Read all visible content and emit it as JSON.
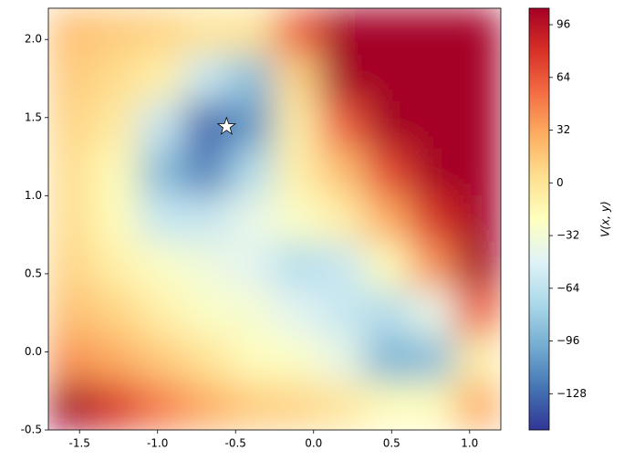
{
  "chart_data": {
    "type": "contour",
    "colorbar_label": "V(x, y)",
    "x": [
      -1.555,
      -1.265,
      -0.975,
      -0.685,
      -0.395,
      -0.105,
      0.185,
      0.475,
      0.765,
      1.055
    ],
    "y": [
      2.05,
      1.75,
      1.45,
      1.15,
      0.85,
      0.55,
      0.25,
      -0.05,
      -0.35
    ],
    "z": [
      [
        20,
        15,
        10,
        0,
        0,
        60,
        110,
        110,
        110,
        110
      ],
      [
        15,
        5,
        -10,
        -60,
        -90,
        10,
        110,
        110,
        110,
        110
      ],
      [
        10,
        -5,
        -60,
        -130,
        -110,
        -10,
        60,
        110,
        110,
        110
      ],
      [
        5,
        -20,
        -90,
        -120,
        -70,
        -10,
        20,
        70,
        110,
        110
      ],
      [
        5,
        -20,
        -60,
        -60,
        -40,
        -25,
        -10,
        30,
        80,
        110
      ],
      [
        10,
        -10,
        -25,
        -35,
        -45,
        -70,
        -60,
        -20,
        40,
        110
      ],
      [
        20,
        10,
        -10,
        -25,
        -30,
        -45,
        -60,
        -70,
        -40,
        60
      ],
      [
        40,
        30,
        15,
        0,
        -20,
        -25,
        -40,
        -95,
        -90,
        -10
      ],
      [
        110,
        80,
        50,
        30,
        15,
        10,
        0,
        -20,
        -20,
        30
      ]
    ],
    "zlim": [
      -150,
      106
    ],
    "colors": [
      "#313695",
      "#4575b4",
      "#74add1",
      "#abd9e9",
      "#e0f3f8",
      "#ffffbf",
      "#fee090",
      "#fdae61",
      "#f46d43",
      "#d73027",
      "#a50026"
    ],
    "marker": {
      "x": -0.558,
      "y": 1.442,
      "color": "#ffffff"
    },
    "xlim": [
      -1.7,
      1.2
    ],
    "ylim": [
      -0.5,
      2.2
    ],
    "xticks": [
      -1.5,
      -1.0,
      -0.5,
      0.0,
      0.5,
      1.0
    ],
    "yticks": [
      -0.5,
      0.0,
      0.5,
      1.0,
      1.5,
      2.0
    ],
    "cticks": [
      -128,
      -96,
      -64,
      -32,
      0,
      32,
      64,
      96
    ]
  }
}
